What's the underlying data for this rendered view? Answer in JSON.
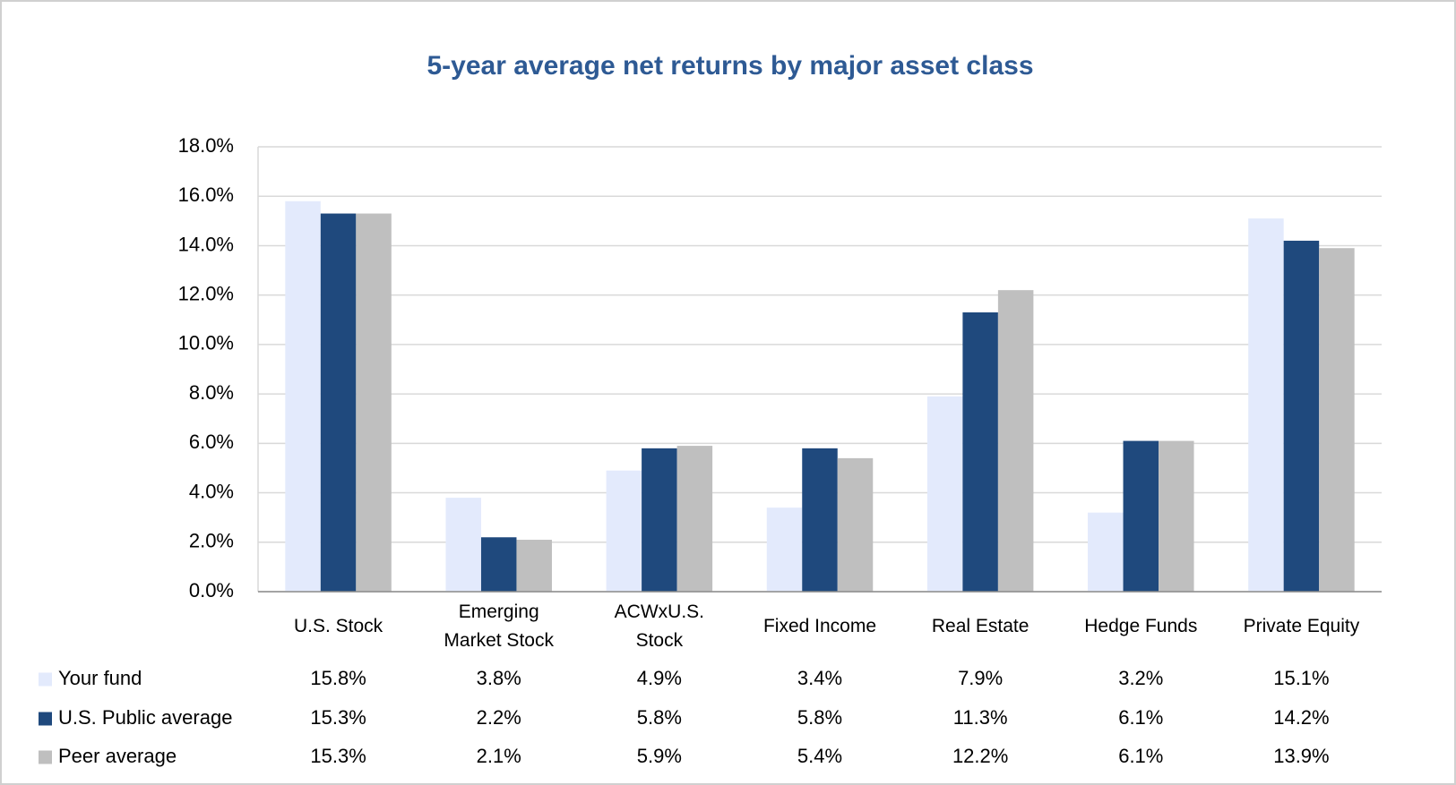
{
  "chart_data": {
    "type": "bar",
    "title": "5-year average net returns by major asset class",
    "categories": [
      "U.S. Stock",
      "Emerging Market Stock",
      "ACWxU.S. Stock",
      "Fixed Income",
      "Real Estate",
      "Hedge Funds",
      "Private Equity"
    ],
    "series": [
      {
        "name": "Your fund",
        "color": "#e3eafc",
        "values": [
          15.8,
          3.8,
          4.9,
          3.4,
          7.9,
          3.2,
          15.1
        ],
        "value_labels": [
          "15.8%",
          "3.8%",
          "4.9%",
          "3.4%",
          "7.9%",
          "3.2%",
          "15.1%"
        ]
      },
      {
        "name": "U.S. Public average",
        "color": "#1f497d",
        "values": [
          15.3,
          2.2,
          5.8,
          5.8,
          11.3,
          6.1,
          14.2
        ],
        "value_labels": [
          "15.3%",
          "2.2%",
          "5.8%",
          "5.8%",
          "11.3%",
          "6.1%",
          "14.2%"
        ]
      },
      {
        "name": "Peer average",
        "color": "#bfbfbf",
        "values": [
          15.3,
          2.1,
          5.9,
          5.4,
          12.2,
          6.1,
          13.9
        ],
        "value_labels": [
          "15.3%",
          "2.1%",
          "5.9%",
          "5.4%",
          "12.2%",
          "6.1%",
          "13.9%"
        ]
      }
    ],
    "ylim": [
      0,
      18
    ],
    "yticks": [
      {
        "value": 0,
        "label": "0.0%"
      },
      {
        "value": 2,
        "label": "2.0%"
      },
      {
        "value": 4,
        "label": "4.0%"
      },
      {
        "value": 6,
        "label": "6.0%"
      },
      {
        "value": 8,
        "label": "8.0%"
      },
      {
        "value": 10,
        "label": "10.0%"
      },
      {
        "value": 12,
        "label": "12.0%"
      },
      {
        "value": 14,
        "label": "14.0%"
      },
      {
        "value": 16,
        "label": "16.0%"
      },
      {
        "value": 18,
        "label": "18.0%"
      }
    ],
    "grid": true
  }
}
